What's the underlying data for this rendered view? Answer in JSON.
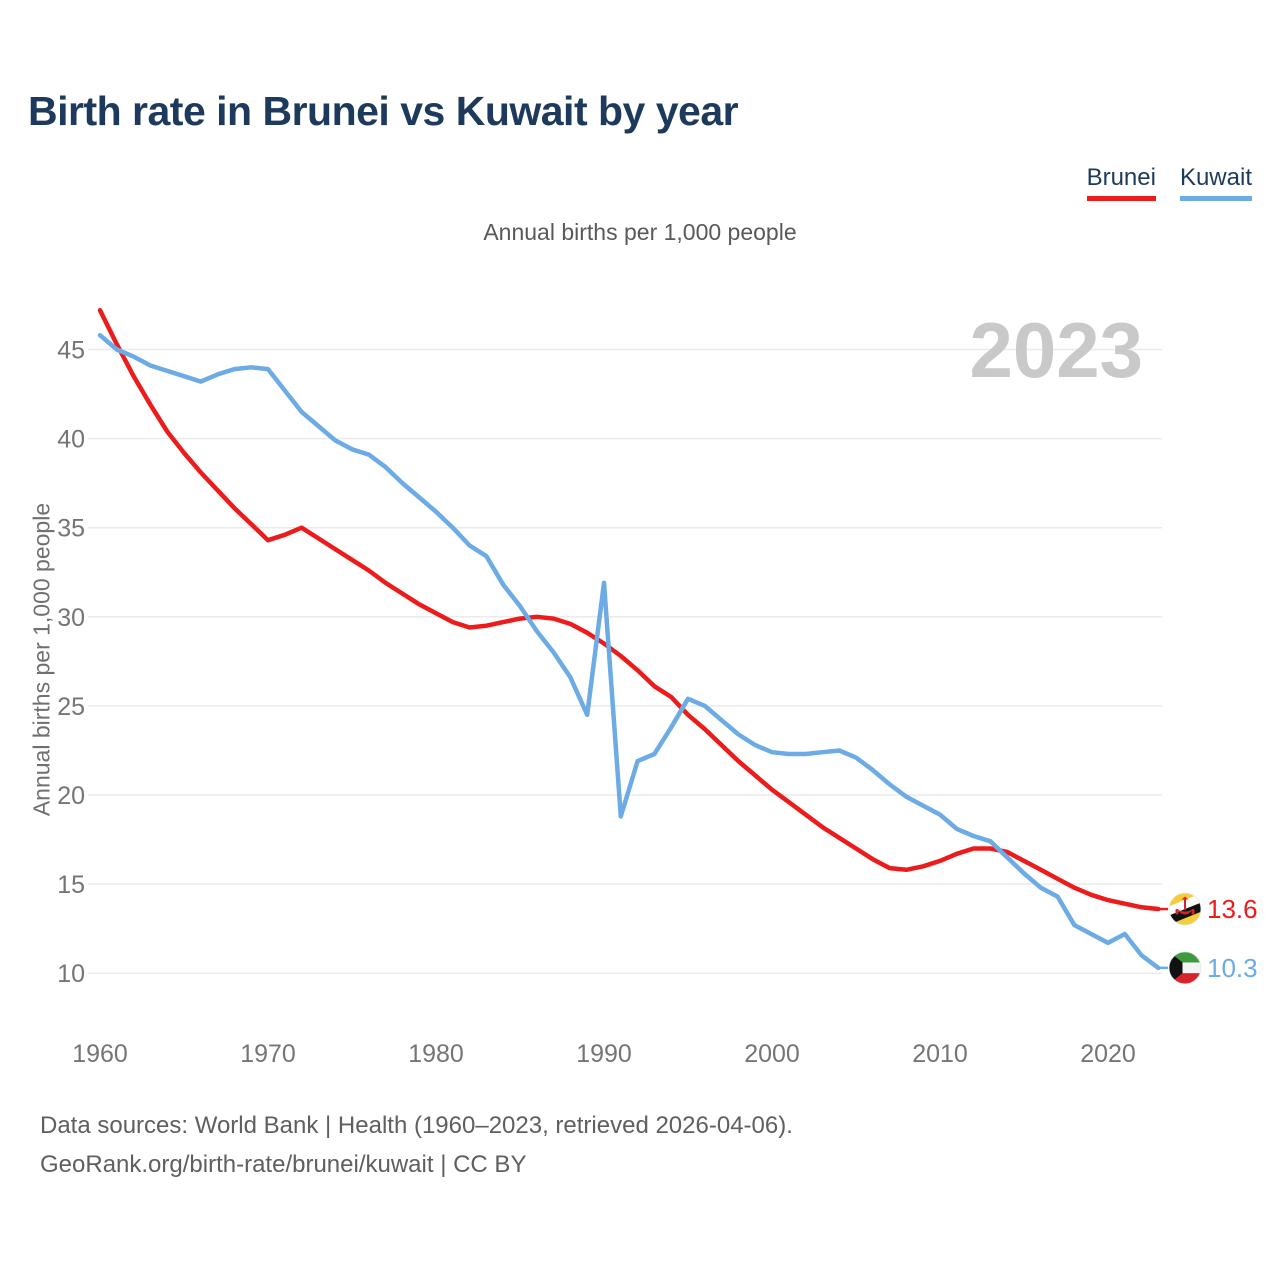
{
  "header": {
    "title": "Birth rate in Brunei vs Kuwait by year"
  },
  "legend": [
    {
      "label": "Brunei",
      "color": "#ed1c1c"
    },
    {
      "label": "Kuwait",
      "color": "#6cabe4"
    }
  ],
  "footer": {
    "line1": "Data sources: World Bank | Health (1960–2023, retrieved 2026-04-06).",
    "line2": "GeoRank.org/birth-rate/brunei/kuwait | CC BY"
  },
  "chart_data": {
    "type": "line",
    "title": "Birth rate in Brunei vs Kuwait by year",
    "subtitle": "Annual births per 1,000 people",
    "ylabel": "Annual births per 1,000 people",
    "watermark": "2023",
    "grid": "horizontal",
    "legend_position": "top-right",
    "xlim": [
      1960,
      2023
    ],
    "ylim": [
      10,
      45
    ],
    "x_ticks": [
      1960,
      1970,
      1980,
      1990,
      2000,
      2010,
      2020
    ],
    "y_ticks": [
      10,
      15,
      20,
      25,
      30,
      35,
      40,
      45
    ],
    "x_start": 1960,
    "x_step": 1,
    "series": [
      {
        "name": "Brunei",
        "color": "#ed1c1c",
        "end_label": "13.6",
        "flag": "brunei",
        "values": [
          47.2,
          45.3,
          43.5,
          41.9,
          40.4,
          39.2,
          38.1,
          37.1,
          36.1,
          35.2,
          34.3,
          34.6,
          35.0,
          34.4,
          33.8,
          33.2,
          32.6,
          31.9,
          31.3,
          30.7,
          30.2,
          29.7,
          29.4,
          29.5,
          29.7,
          29.9,
          30.0,
          29.9,
          29.6,
          29.1,
          28.5,
          27.8,
          27.0,
          26.1,
          25.5,
          24.5,
          23.7,
          22.8,
          21.9,
          21.1,
          20.3,
          19.6,
          18.9,
          18.2,
          17.6,
          17.0,
          16.4,
          15.9,
          15.8,
          16.0,
          16.3,
          16.7,
          17.0,
          17.0,
          16.8,
          16.3,
          15.8,
          15.3,
          14.8,
          14.4,
          14.1,
          13.9,
          13.7,
          13.6
        ]
      },
      {
        "name": "Kuwait",
        "color": "#6cabe4",
        "end_label": "10.3",
        "flag": "kuwait",
        "values": [
          45.8,
          45.0,
          44.6,
          44.1,
          43.8,
          43.5,
          43.2,
          43.6,
          43.9,
          44.0,
          43.9,
          42.7,
          41.5,
          40.7,
          39.9,
          39.4,
          39.1,
          38.4,
          37.5,
          36.7,
          35.9,
          35.0,
          34.0,
          33.4,
          31.8,
          30.6,
          29.2,
          28.0,
          26.6,
          24.5,
          31.9,
          18.8,
          21.9,
          22.3,
          23.8,
          25.4,
          25.0,
          24.2,
          23.4,
          22.8,
          22.4,
          22.3,
          22.3,
          22.4,
          22.5,
          22.1,
          21.4,
          20.6,
          19.9,
          19.4,
          18.9,
          18.1,
          17.7,
          17.4,
          16.5,
          15.6,
          14.8,
          14.3,
          12.7,
          12.2,
          11.7,
          12.2,
          11.0,
          10.3
        ]
      }
    ]
  }
}
